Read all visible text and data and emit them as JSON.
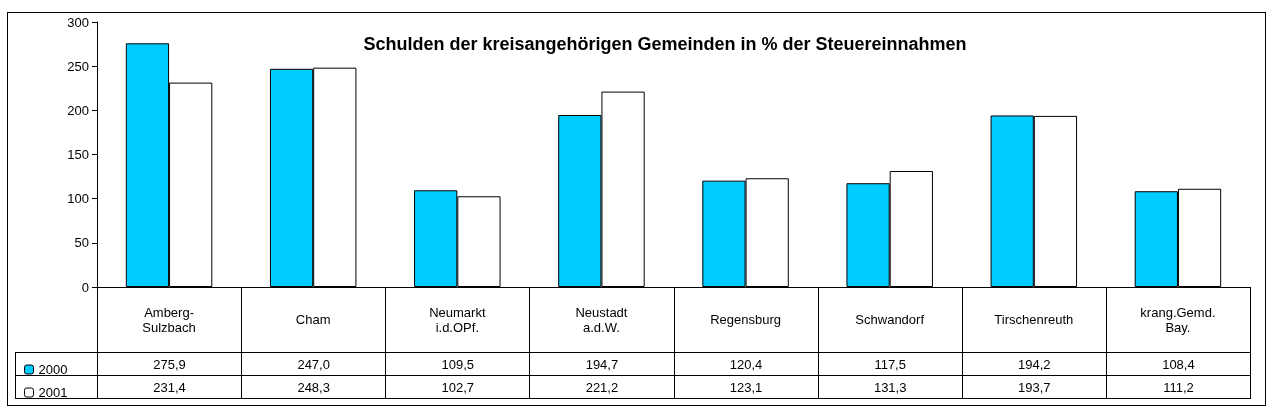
{
  "chart_data": {
    "type": "bar",
    "title": "Schulden der kreisangehörigen Gemeinden in % der Steuereinnahmen",
    "categories": [
      "Amberg-\nSulzbach",
      "Cham",
      "Neumarkt\ni.d.OPf.",
      "Neustadt\na.d.W.",
      "Regensburg",
      "Schwandorf",
      "Tirschenreuth",
      "krang.Gemd.\nBay."
    ],
    "series": [
      {
        "name": "2000",
        "color": "#00ccff",
        "values": [
          275.9,
          247.0,
          109.5,
          194.7,
          120.4,
          117.5,
          194.2,
          108.4
        ],
        "value_labels": [
          "275,9",
          "247,0",
          "109,5",
          "194,7",
          "120,4",
          "117,5",
          "194,2",
          "108,4"
        ]
      },
      {
        "name": "2001",
        "color": "#ffffff",
        "values": [
          231.4,
          248.3,
          102.7,
          221.2,
          123.1,
          131.3,
          193.7,
          111.2
        ],
        "value_labels": [
          "231,4",
          "248,3",
          "102,7",
          "221,2",
          "123,1",
          "131,3",
          "193,7",
          "111,2"
        ]
      }
    ],
    "ylim": [
      0,
      300
    ],
    "yticks": [
      0,
      50,
      100,
      150,
      200,
      250,
      300
    ],
    "grid": false,
    "legend": "bottom left"
  }
}
